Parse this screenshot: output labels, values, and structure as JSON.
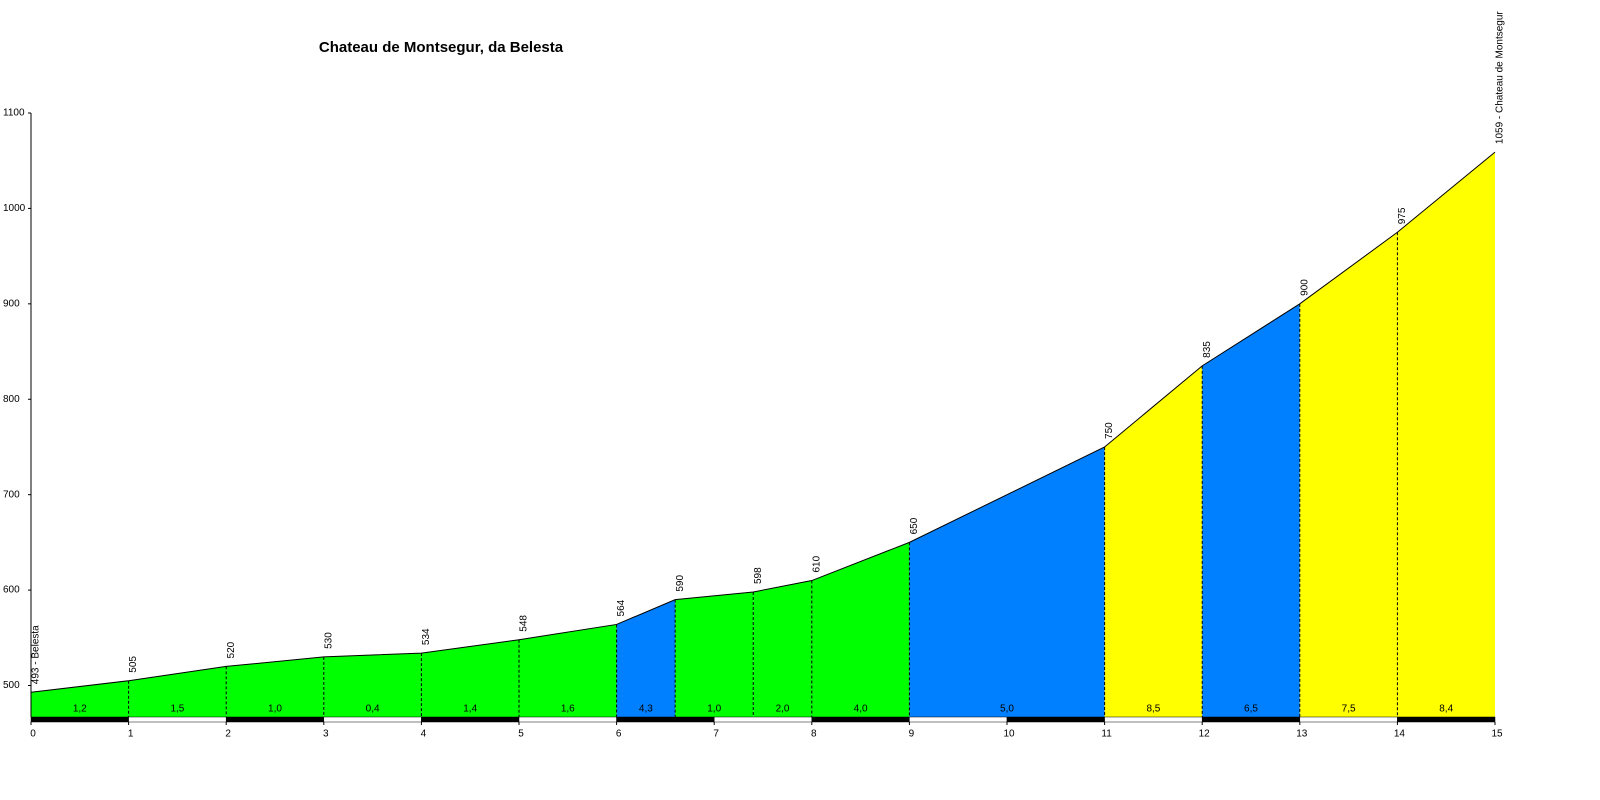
{
  "chart_data": {
    "type": "elevation-profile",
    "title": "Chateau de Montsegur, da Belesta",
    "x": [
      0,
      1,
      2,
      3,
      4,
      5,
      6,
      6.6,
      7.4,
      8,
      9,
      11,
      12,
      13,
      14,
      15
    ],
    "values": [
      493,
      505,
      520,
      530,
      534,
      548,
      564,
      590,
      598,
      610,
      650,
      750,
      835,
      900,
      975,
      1059
    ],
    "value_labels": [
      "493 - Belesta",
      "505",
      "520",
      "530",
      "534",
      "548",
      "564",
      "590",
      "598",
      "610",
      "650",
      "750",
      "835",
      "900",
      "975",
      "1059 - Chateau de Montsegur"
    ],
    "segments": {
      "values": [
        1.2,
        1.5,
        1.0,
        0.4,
        1.4,
        1.6,
        4.3,
        1.0,
        2.0,
        4.0,
        5.0,
        8.5,
        6.5,
        7.5,
        8.4
      ],
      "value_labels": [
        "1,2",
        "1,5",
        "1,0",
        "0,4",
        "1,4",
        "1,6",
        "4,3",
        "1,0",
        "2,0",
        "4,0",
        "5,0",
        "8,5",
        "6,5",
        "7,5",
        "8,4"
      ],
      "colors": [
        "#00ff00",
        "#00ff00",
        "#00ff00",
        "#00ff00",
        "#00ff00",
        "#00ff00",
        "#0080ff",
        "#00ff00",
        "#00ff00",
        "#00ff00",
        "#0080ff",
        "#ffff00",
        "#0080ff",
        "#ffff00",
        "#ffff00"
      ]
    },
    "xlim": [
      0,
      15
    ],
    "xticks": [
      0,
      1,
      2,
      3,
      4,
      5,
      6,
      7,
      8,
      9,
      10,
      11,
      12,
      13,
      14,
      15
    ],
    "ylim": [
      467,
      1100
    ],
    "yticks": [
      500,
      600,
      700,
      800,
      900,
      1000,
      1100
    ]
  }
}
